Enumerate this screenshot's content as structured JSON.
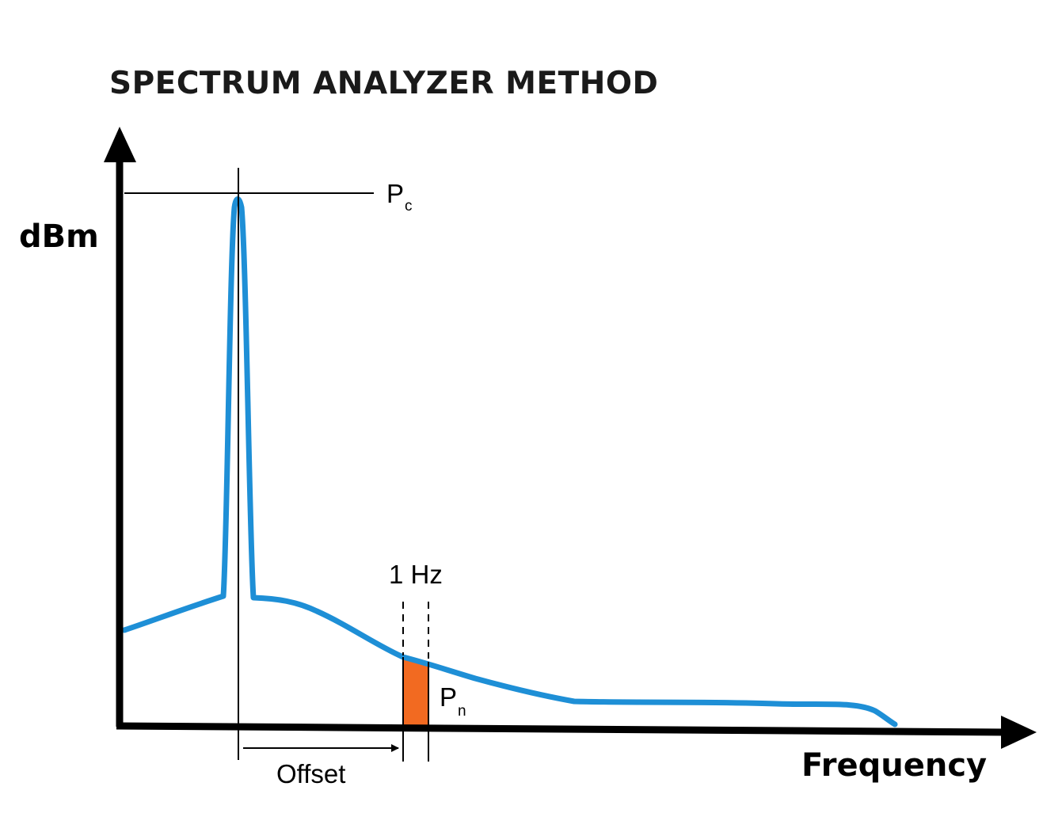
{
  "title": "SPECTRUM ANALYZER METHOD",
  "y_axis_label": "dBm",
  "x_axis_label": "Frequency",
  "carrier_label": {
    "main": "P",
    "sub": "c"
  },
  "noise_label": {
    "main": "P",
    "sub": "n"
  },
  "bandwidth_label": "1 Hz",
  "offset_label": "Offset",
  "colors": {
    "trace": "#1e8fd6",
    "noise_band": "#f26a21",
    "axis": "#000000"
  }
}
